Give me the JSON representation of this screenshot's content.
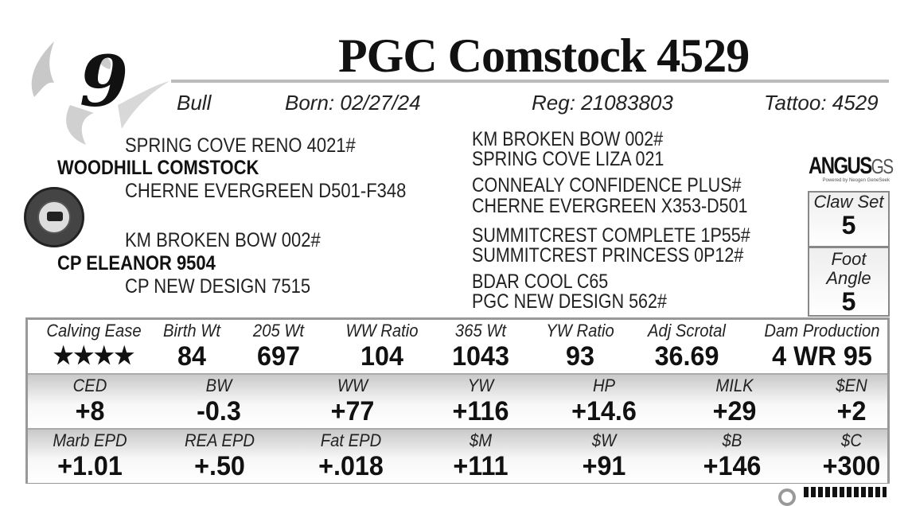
{
  "lot_number": "9",
  "title": "PGC Comstock 4529",
  "info": {
    "sex": "Bull",
    "born": "Born:  02/27/24",
    "reg": "Reg:  21083803",
    "tattoo": "Tattoo:  4529"
  },
  "pedigree_left": {
    "sire_sire": "SPRING COVE RENO 4021#",
    "sire": "WOODHILL COMSTOCK",
    "sire_dam": "CHERNE EVERGREEN D501-F348",
    "dam_sire": "KM BROKEN BOW 002#",
    "dam": "CP ELEANOR 9504",
    "dam_dam": "CP NEW DESIGN 7515"
  },
  "pedigree_right": [
    "KM BROKEN BOW 002#",
    "SPRING COVE LIZA 021",
    "CONNEALY CONFIDENCE PLUS#",
    "CHERNE EVERGREEN X353-D501",
    "SUMMITCREST COMPLETE 1P55#",
    "SUMMITCREST PRINCESS 0P12#",
    "BDAR COOL C65",
    "PGC NEW DESIGN 562#"
  ],
  "logo": {
    "brand": "ANGUS",
    "suffix": "GS",
    "tagline": "Powered by Neogen GeneSeek"
  },
  "claw_set": {
    "label": "Claw Set",
    "value": "5"
  },
  "foot_angle": {
    "label": "Foot Angle",
    "value": "5"
  },
  "performance": [
    {
      "label": "Calving Ease",
      "value": "★★★★"
    },
    {
      "label": "Birth Wt",
      "value": "84"
    },
    {
      "label": "205 Wt",
      "value": "697"
    },
    {
      "label": "WW Ratio",
      "value": "104"
    },
    {
      "label": "365 Wt",
      "value": "1043"
    },
    {
      "label": "YW Ratio",
      "value": "93"
    },
    {
      "label": "Adj Scrotal",
      "value": "36.69"
    },
    {
      "label": "Dam Production",
      "value": "4 WR 95"
    }
  ],
  "epds": [
    {
      "label": "CED",
      "value": "+8"
    },
    {
      "label": "BW",
      "value": "-0.3"
    },
    {
      "label": "WW",
      "value": "+77"
    },
    {
      "label": "YW",
      "value": "+116"
    },
    {
      "label": "HP",
      "value": "+14.6"
    },
    {
      "label": "MILK",
      "value": "+29"
    },
    {
      "label": "$EN",
      "value": "+2"
    }
  ],
  "carcass": [
    {
      "label": "Marb EPD",
      "value": "+1.01"
    },
    {
      "label": "REA EPD",
      "value": "+.50"
    },
    {
      "label": "Fat EPD",
      "value": "+.018"
    },
    {
      "label": "$M",
      "value": "+111"
    },
    {
      "label": "$W",
      "value": "+91"
    },
    {
      "label": "$B",
      "value": "+146"
    },
    {
      "label": "$C",
      "value": "+300"
    }
  ]
}
